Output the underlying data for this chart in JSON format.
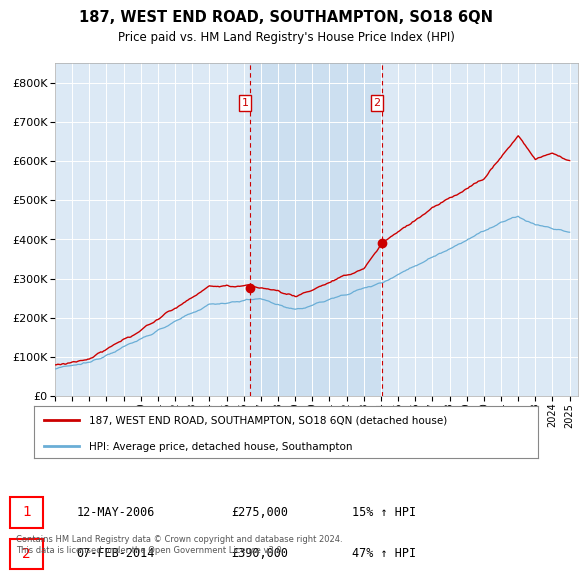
{
  "title": "187, WEST END ROAD, SOUTHAMPTON, SO18 6QN",
  "subtitle": "Price paid vs. HM Land Registry's House Price Index (HPI)",
  "legend_line1": "187, WEST END ROAD, SOUTHAMPTON, SO18 6QN (detached house)",
  "legend_line2": "HPI: Average price, detached house, Southampton",
  "transaction1_date": "12-MAY-2006",
  "transaction1_price": 275000,
  "transaction1_hpi": "15% ↑ HPI",
  "transaction2_date": "07-FEB-2014",
  "transaction2_price": 390000,
  "transaction2_hpi": "47% ↑ HPI",
  "footer": "Contains HM Land Registry data © Crown copyright and database right 2024.\nThis data is licensed under the Open Government Licence v3.0.",
  "hpi_color": "#6aaed6",
  "price_color": "#cc0000",
  "dot_color": "#cc0000",
  "vline_color": "#cc0000",
  "background_chart": "#dce9f5",
  "background_between": "#ccdff0",
  "background_fig": "#ffffff",
  "ylim": [
    0,
    850000
  ],
  "yticks": [
    0,
    100000,
    200000,
    300000,
    400000,
    500000,
    600000,
    700000,
    800000
  ],
  "t1_year": 2006.37,
  "t2_year": 2014.08,
  "t1_price": 275000,
  "t2_price": 390000
}
